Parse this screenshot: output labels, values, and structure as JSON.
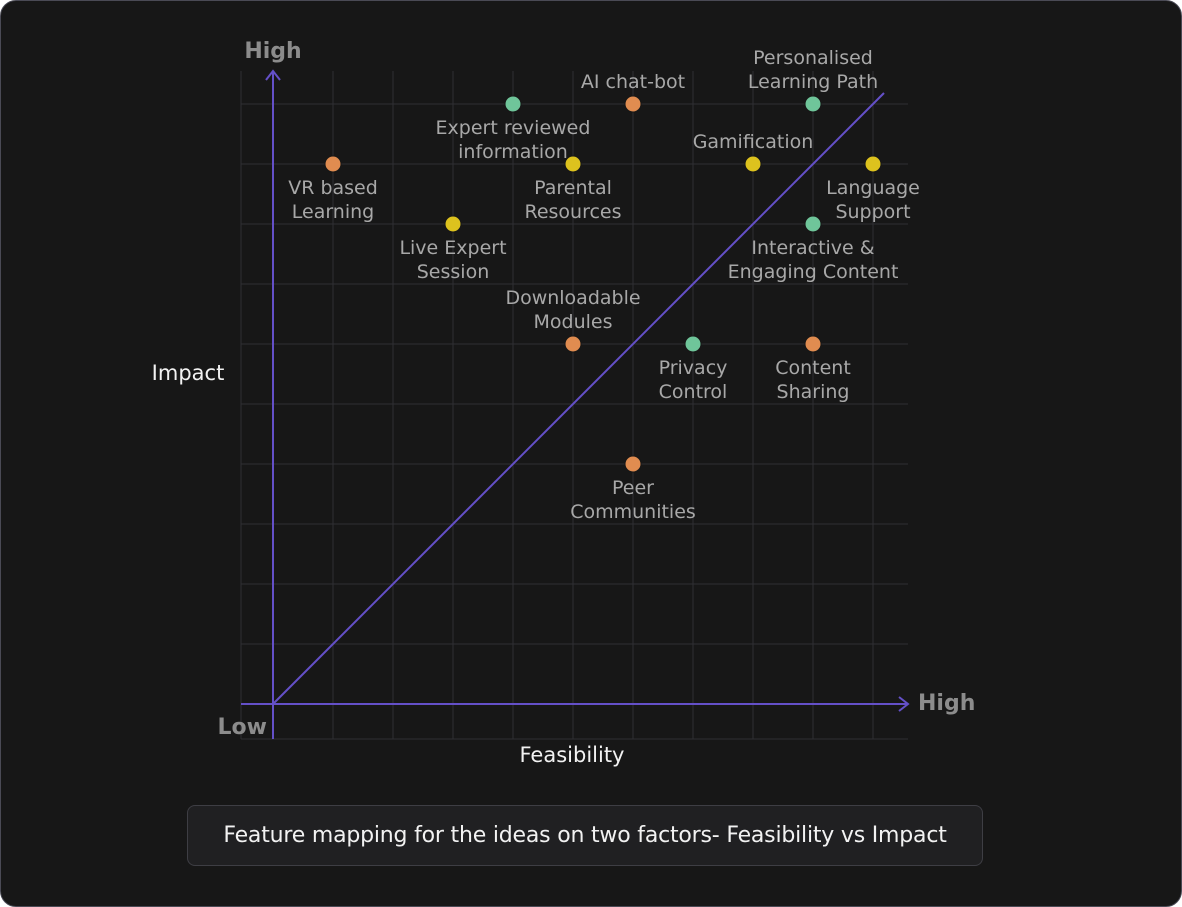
{
  "caption": "Feature mapping for the ideas on two factors- Feasibility vs Impact",
  "chart_data": {
    "type": "scatter",
    "xlabel": "Feasibility",
    "ylabel": "Impact",
    "x_high_label": "High",
    "y_high_label": "High",
    "origin_label": "Low",
    "xlim": [
      0,
      10
    ],
    "ylim": [
      0,
      10
    ],
    "grid": true,
    "diagonal": "y = x",
    "colors": {
      "green": "#6fc59a",
      "orange": "#e08c50",
      "yellow": "#ddc21e",
      "axis": "#6450c8"
    },
    "points": [
      {
        "label": [
          "VR based",
          "Learning"
        ],
        "x": 1,
        "y": 9,
        "color": "orange"
      },
      {
        "label": [
          "Live Expert",
          "Session"
        ],
        "x": 3,
        "y": 8,
        "color": "yellow"
      },
      {
        "label": [
          "Expert reviewed",
          "information"
        ],
        "x": 4,
        "y": 10,
        "color": "green"
      },
      {
        "label": [
          "AI chat-bot"
        ],
        "x": 6,
        "y": 10,
        "color": "orange"
      },
      {
        "label": [
          "Parental",
          "Resources"
        ],
        "x": 5,
        "y": 9,
        "color": "yellow"
      },
      {
        "label": [
          "Personalised",
          "Learning Path"
        ],
        "x": 9,
        "y": 10,
        "color": "green"
      },
      {
        "label": [
          "Gamification"
        ],
        "x": 8,
        "y": 9,
        "color": "yellow"
      },
      {
        "label": [
          "Language",
          "Support"
        ],
        "x": 10,
        "y": 9,
        "color": "yellow"
      },
      {
        "label": [
          "Interactive &",
          "Engaging Content"
        ],
        "x": 9,
        "y": 8,
        "color": "green"
      },
      {
        "label": [
          "Downloadable",
          "Modules"
        ],
        "x": 5,
        "y": 6,
        "color": "orange"
      },
      {
        "label": [
          "Privacy",
          "Control"
        ],
        "x": 7,
        "y": 6,
        "color": "green"
      },
      {
        "label": [
          "Content",
          "Sharing"
        ],
        "x": 9,
        "y": 6,
        "color": "orange"
      },
      {
        "label": [
          "Peer",
          "Communities"
        ],
        "x": 6,
        "y": 4,
        "color": "orange"
      }
    ]
  }
}
